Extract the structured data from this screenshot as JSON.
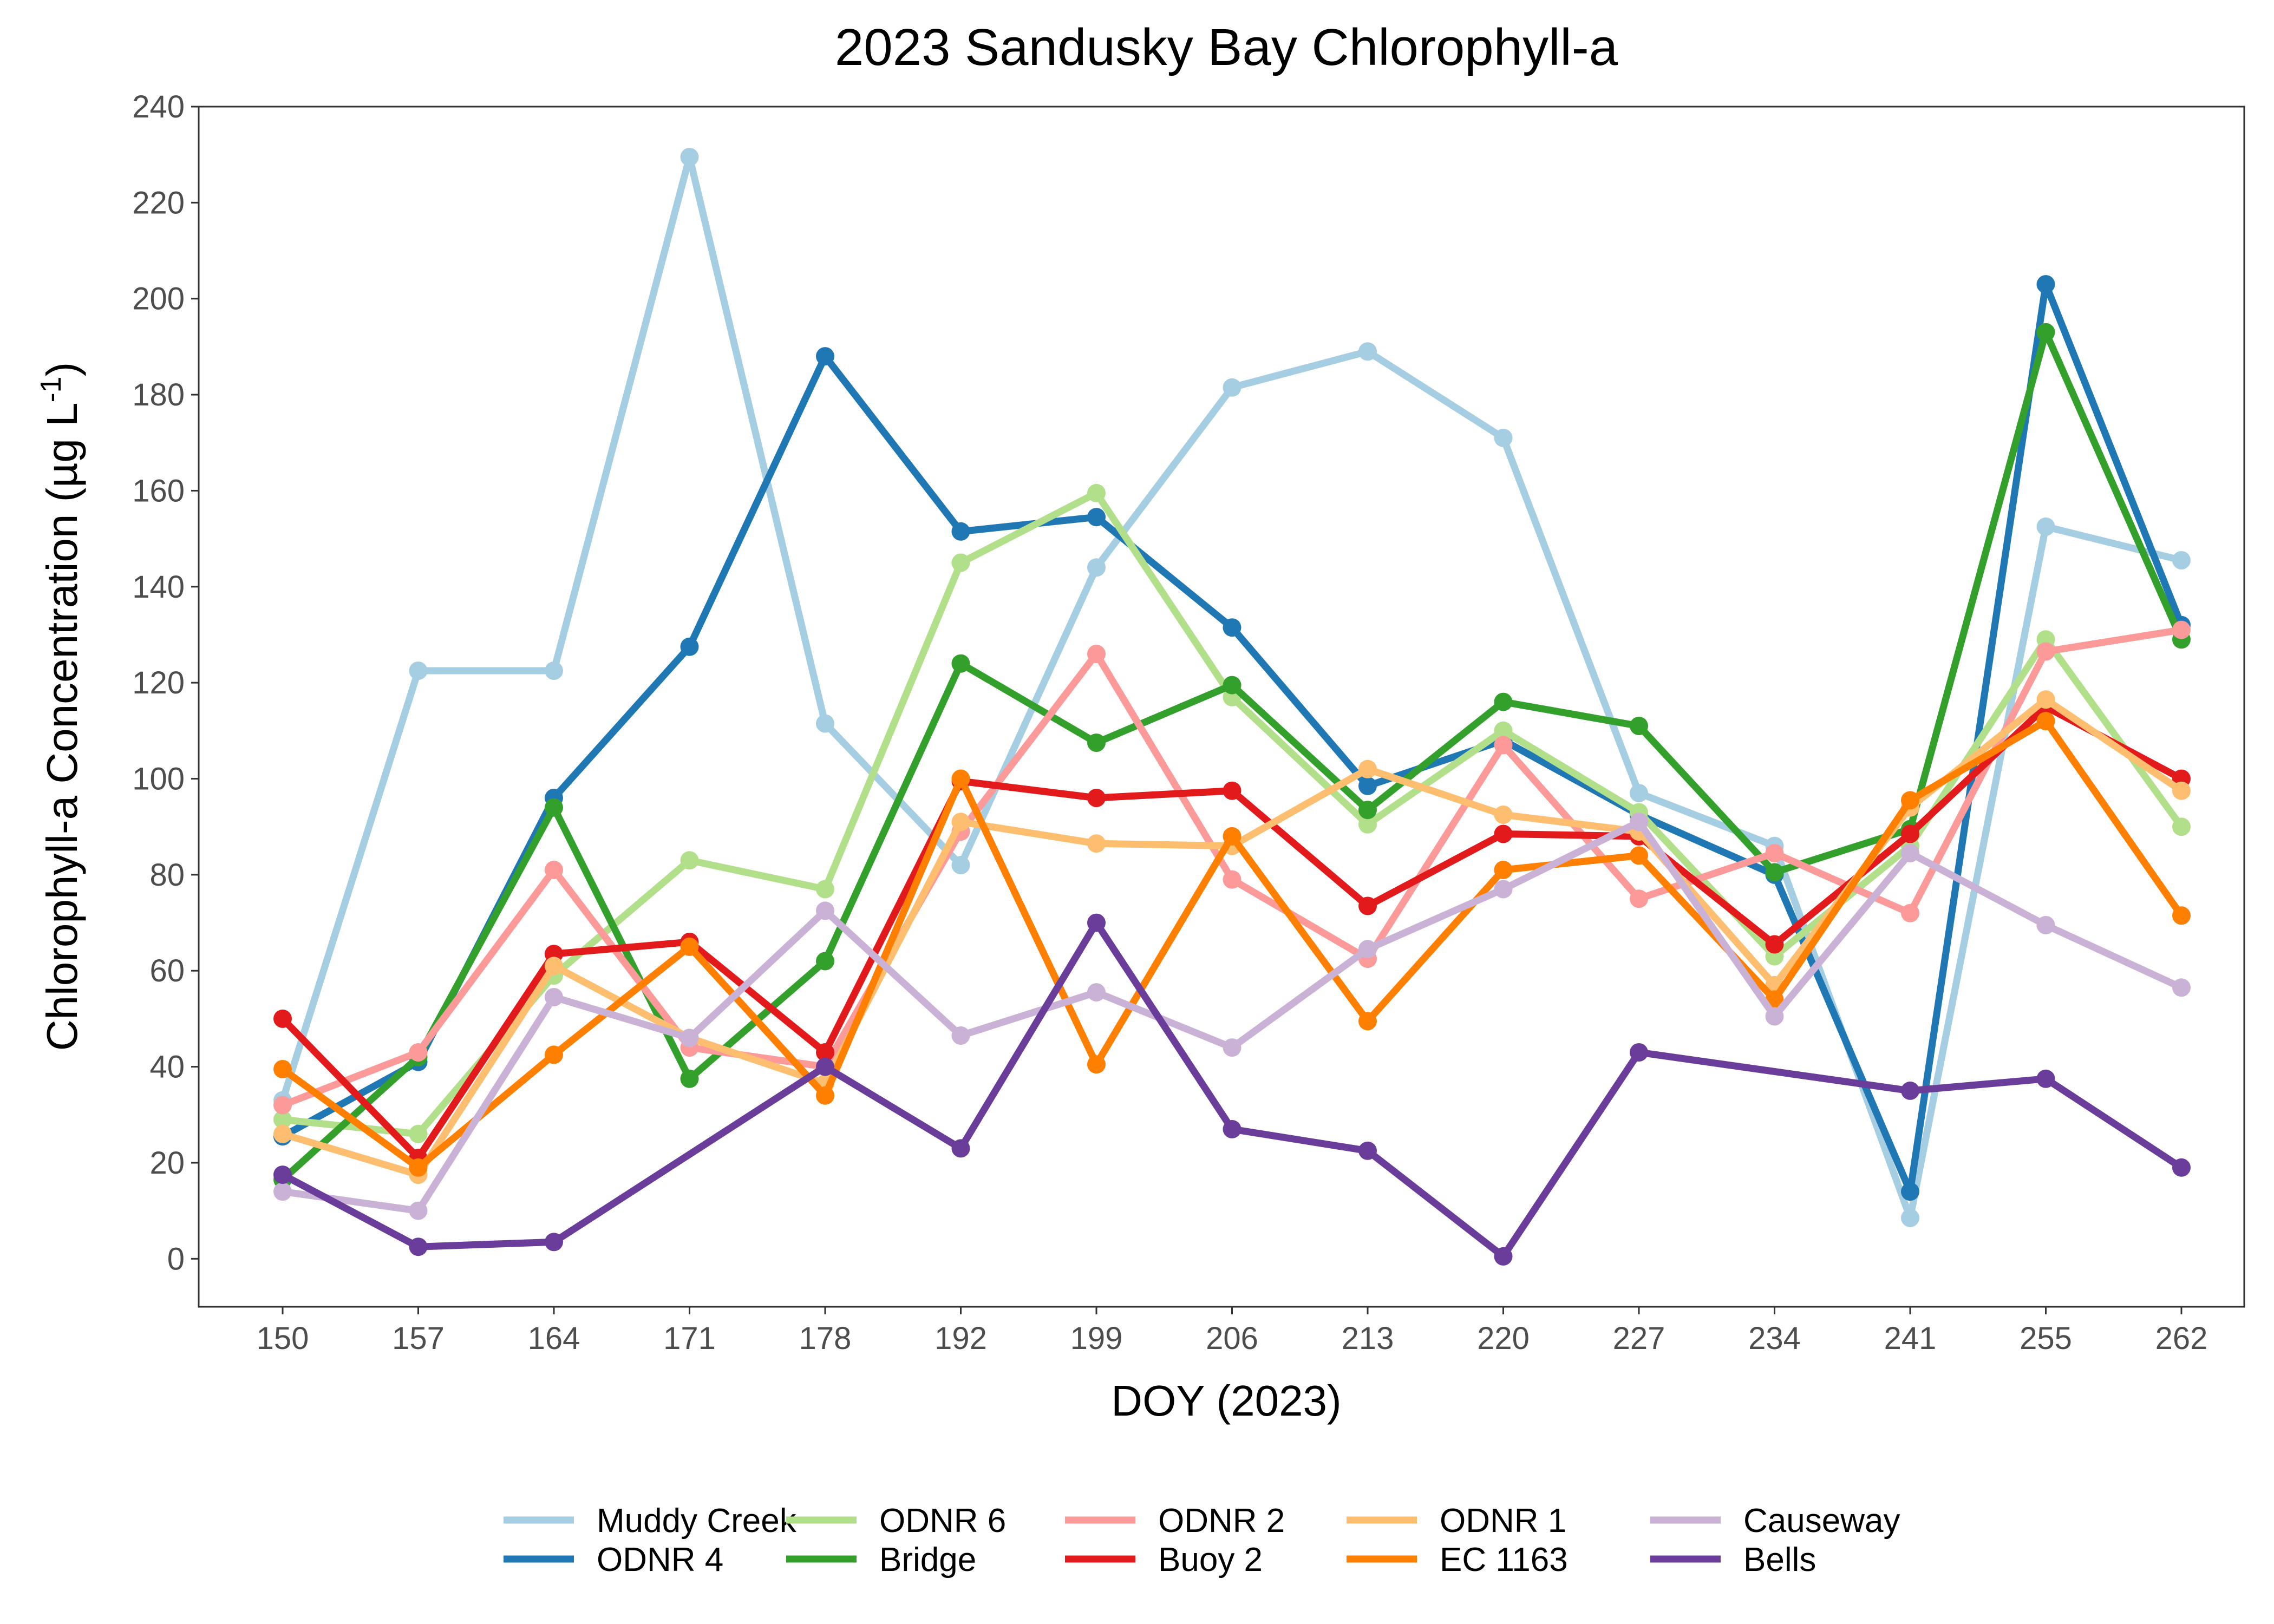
{
  "chart_data": {
    "type": "line",
    "title": "2023 Sandusky Bay Chlorophyll-a",
    "xlabel": "DOY (2023)",
    "ylabel": "Chlorophyll-a Concentration (µg L",
    "ylabel_unit_exponent": "-1",
    "ylabel_close": ")",
    "x": [
      "150",
      "157",
      "164",
      "171",
      "178",
      "192",
      "199",
      "206",
      "213",
      "220",
      "227",
      "234",
      "241",
      "255",
      "262"
    ],
    "ylim": [
      -10,
      240
    ],
    "yticks": [
      0,
      20,
      40,
      60,
      80,
      100,
      120,
      140,
      160,
      180,
      200,
      220,
      240
    ],
    "grid": false,
    "legend_position": "bottom",
    "series": [
      {
        "name": "Muddy Creek",
        "color": "#a6cee3",
        "values": [
          33,
          122.5,
          122.5,
          229.5,
          111.5,
          82,
          144,
          181.5,
          189,
          171,
          97,
          86,
          8.5,
          152.5,
          145.5
        ]
      },
      {
        "name": "ODNR 4",
        "color": "#1f78b4",
        "values": [
          25.5,
          41,
          96,
          127.5,
          188,
          151.5,
          154.5,
          131.5,
          98.5,
          108,
          92.5,
          80,
          14,
          203,
          132
        ]
      },
      {
        "name": "ODNR 6",
        "color": "#b2df8a",
        "values": [
          29,
          26,
          59,
          83,
          77,
          145,
          159.5,
          117,
          90.5,
          110,
          93,
          63,
          86,
          129,
          90
        ]
      },
      {
        "name": "Bridge",
        "color": "#33a02c",
        "values": [
          16.5,
          42,
          94,
          37.5,
          62,
          124,
          107.5,
          119.5,
          93.5,
          116,
          111,
          80.5,
          89.5,
          193,
          129
        ]
      },
      {
        "name": "ODNR 2",
        "color": "#fb9a99",
        "values": [
          32,
          43,
          81,
          44,
          40,
          89,
          126,
          79,
          62.5,
          107,
          75,
          84.5,
          72,
          126.5,
          131
        ]
      },
      {
        "name": "Buoy 2",
        "color": "#e31a1c",
        "values": [
          50,
          21,
          63.5,
          66,
          43,
          99.5,
          96,
          97.5,
          73.5,
          88.5,
          88,
          65.5,
          88.5,
          115,
          100
        ]
      },
      {
        "name": "ODNR 1",
        "color": "#fdbf6f",
        "values": [
          26,
          17.5,
          61,
          46,
          36.5,
          91,
          86.5,
          86,
          102,
          92.5,
          89,
          57,
          94,
          116.5,
          97.5
        ]
      },
      {
        "name": "EC 1163",
        "color": "#ff7f00",
        "values": [
          39.5,
          19,
          42.5,
          65,
          34,
          100,
          40.5,
          88,
          49.5,
          81,
          84,
          54,
          95.5,
          112,
          71.5
        ]
      },
      {
        "name": "Causeway",
        "color": "#cab2d6",
        "values": [
          14,
          10,
          54.5,
          46,
          72.5,
          46.5,
          55.5,
          44,
          64.5,
          77,
          91,
          50.5,
          84.5,
          69.5,
          56.5
        ]
      },
      {
        "name": "Bells",
        "color": "#6a3d9a",
        "values": [
          17.5,
          2.5,
          3.5,
          null,
          40,
          23,
          70,
          27,
          22.5,
          0.5,
          43,
          null,
          35,
          37.5,
          19
        ]
      }
    ]
  }
}
